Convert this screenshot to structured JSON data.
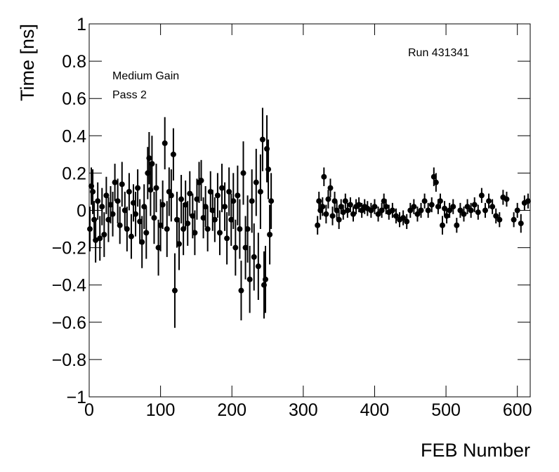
{
  "chart_data": {
    "type": "scatter",
    "xlabel": "FEB Number",
    "ylabel": "Time [ns]",
    "annotations": [
      "Run 431341",
      "Medium Gain",
      "Pass 2"
    ],
    "xlim": [
      0,
      618
    ],
    "ylim": [
      -1,
      1
    ],
    "xticks": [
      0,
      100,
      200,
      300,
      400,
      500,
      600
    ],
    "yticks": [
      {
        "value": -1,
        "label": "−1"
      },
      {
        "value": -0.8,
        "label": "−0.8"
      },
      {
        "value": -0.6,
        "label": "−0.6"
      },
      {
        "value": -0.4,
        "label": "−0.4"
      },
      {
        "value": -0.2,
        "label": "−0.2"
      },
      0,
      0.2,
      0.4,
      0.6,
      0.8,
      1
    ],
    "series": [
      {
        "color": "#000000",
        "x": [
          1,
          3,
          5,
          7,
          9,
          12,
          15,
          18,
          21,
          24,
          27,
          30,
          33,
          36,
          40,
          43,
          46,
          50,
          53,
          56,
          59,
          62,
          65,
          68,
          71,
          74,
          77,
          80,
          82,
          84,
          86,
          88,
          91,
          94,
          97,
          100,
          103,
          106,
          109,
          112,
          115,
          118,
          120,
          123,
          126,
          129,
          132,
          135,
          138,
          141,
          145,
          148,
          151,
          154,
          157,
          160,
          163,
          166,
          170,
          173,
          176,
          180,
          183,
          186,
          190,
          193,
          196,
          199,
          202,
          205,
          208,
          211,
          213,
          216,
          219,
          222,
          225,
          228,
          231,
          234,
          237,
          240,
          243,
          245,
          247,
          249,
          251,
          253,
          255,
          320,
          322,
          324,
          327,
          329,
          332,
          335,
          338,
          341,
          344,
          347,
          350,
          353,
          356,
          359,
          362,
          366,
          370,
          374,
          378,
          382,
          386,
          390,
          395,
          400,
          405,
          410,
          413,
          416,
          420,
          425,
          430,
          435,
          440,
          445,
          450,
          455,
          460,
          465,
          470,
          475,
          480,
          483,
          486,
          489,
          492,
          495,
          498,
          501,
          505,
          510,
          515,
          520,
          525,
          530,
          535,
          540,
          545,
          550,
          555,
          560,
          565,
          570,
          575,
          580,
          585,
          595,
          600,
          605,
          610,
          615
        ],
        "values": [
          -0.1,
          0.13,
          0.1,
          -0.05,
          -0.16,
          0.05,
          -0.15,
          0.02,
          -0.13,
          0.08,
          -0.05,
          0.03,
          -0.02,
          0.15,
          0.05,
          -0.08,
          0.14,
          0,
          -0.1,
          0.1,
          -0.14,
          0.04,
          -0.02,
          0.12,
          -0.06,
          -0.17,
          0.02,
          -0.12,
          0.2,
          0.28,
          0.11,
          0.25,
          -0.04,
          0.12,
          -0.2,
          -0.08,
          0.03,
          0.36,
          -0.1,
          0.1,
          0.08,
          0.3,
          -0.43,
          -0.05,
          -0.18,
          0.06,
          -0.1,
          0.03,
          -0.07,
          0.09,
          -0.03,
          -0.12,
          0.06,
          0.15,
          0.16,
          -0.04,
          0.02,
          -0.1,
          0.1,
          0,
          -0.05,
          0.08,
          -0.12,
          0.12,
          0.02,
          -0.15,
          0.1,
          -0.05,
          0.05,
          -0.2,
          0.08,
          -0.1,
          -0.43,
          0.2,
          -0.2,
          -0.1,
          -0.37,
          0.05,
          -0.25,
          0.15,
          -0.3,
          0.1,
          0.38,
          -0.4,
          -0.37,
          0.33,
          0.22,
          -0.13,
          0.05,
          -0.08,
          0.05,
          0,
          0.02,
          0.18,
          -0.02,
          0.06,
          0.12,
          -0.03,
          0.05,
          0,
          -0.05,
          0.02,
          -0.01,
          0.05,
          0,
          0.03,
          -0.02,
          0.02,
          0.03,
          0,
          0.02,
          0.01,
          0,
          0.02,
          -0.02,
          0,
          0.05,
          0.02,
          -0.01,
          0,
          -0.03,
          -0.05,
          -0.04,
          -0.06,
          0,
          0.02,
          -0.02,
          0,
          0.05,
          0,
          0.03,
          0.18,
          0.15,
          0.02,
          0.05,
          -0.08,
          0.01,
          -0.03,
          0,
          0.02,
          -0.08,
          0,
          -0.02,
          0.02,
          0,
          0.03,
          -0.01,
          0.08,
          0,
          0.05,
          0.02,
          -0.03,
          -0.05,
          0.07,
          0.06,
          -0.05,
          0,
          -0.07,
          0.04,
          0.05
        ],
        "errors": [
          0.12,
          0.1,
          0.12,
          0.1,
          0.12,
          0.1,
          0.12,
          0.1,
          0.12,
          0.1,
          0.12,
          0.1,
          0.12,
          0.1,
          0.12,
          0.1,
          0.12,
          0.1,
          0.12,
          0.1,
          0.12,
          0.1,
          0.12,
          0.1,
          0.12,
          0.14,
          0.12,
          0.14,
          0.14,
          0.14,
          0.14,
          0.15,
          0.14,
          0.13,
          0.15,
          0.14,
          0.13,
          0.14,
          0.15,
          0.13,
          0.14,
          0.14,
          0.2,
          0.15,
          0.14,
          0.13,
          0.14,
          0.13,
          0.12,
          0.12,
          0.12,
          0.12,
          0.11,
          0.11,
          0.11,
          0.11,
          0.11,
          0.12,
          0.11,
          0.11,
          0.12,
          0.12,
          0.12,
          0.13,
          0.13,
          0.14,
          0.13,
          0.14,
          0.15,
          0.15,
          0.16,
          0.16,
          0.16,
          0.17,
          0.17,
          0.18,
          0.18,
          0.17,
          0.18,
          0.18,
          0.18,
          0.2,
          0.17,
          0.18,
          0.18,
          0.18,
          0.16,
          0.16,
          0.15,
          0.05,
          0.05,
          0.05,
          0.05,
          0.05,
          0.05,
          0.05,
          0.05,
          0.05,
          0.05,
          0.05,
          0.05,
          0.04,
          0.04,
          0.04,
          0.04,
          0.04,
          0.04,
          0.04,
          0.04,
          0.04,
          0.04,
          0.04,
          0.04,
          0.04,
          0.04,
          0.04,
          0.04,
          0.04,
          0.04,
          0.04,
          0.04,
          0.04,
          0.04,
          0.04,
          0.04,
          0.04,
          0.04,
          0.04,
          0.04,
          0.04,
          0.04,
          0.05,
          0.05,
          0.04,
          0.04,
          0.05,
          0.04,
          0.04,
          0.04,
          0.04,
          0.04,
          0.04,
          0.04,
          0.04,
          0.04,
          0.04,
          0.04,
          0.04,
          0.04,
          0.04,
          0.04,
          0.04,
          0.04,
          0.04,
          0.04,
          0.04,
          0.04,
          0.05,
          0.04,
          0.04
        ]
      }
    ]
  }
}
